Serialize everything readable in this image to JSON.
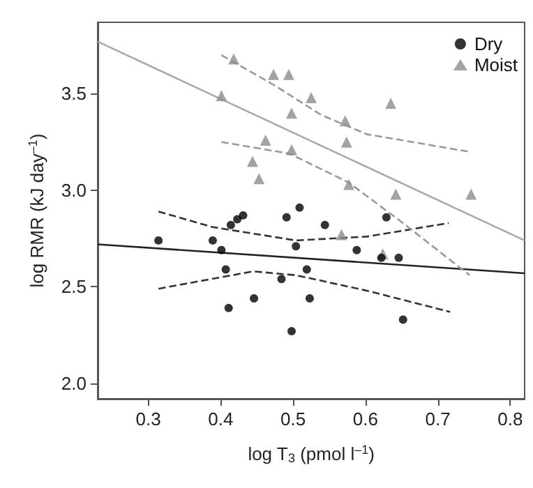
{
  "chart_data": {
    "type": "scatter",
    "xlabel": "log T$_{3}$ (pmol l$^{–1}$)",
    "ylabel": "log RMR (kJ day$^{–1}$)",
    "xlim": [
      0.23,
      0.82
    ],
    "ylim": [
      1.92,
      3.87
    ],
    "xticks": [
      0.3,
      0.4,
      0.5,
      0.6,
      0.7,
      0.8
    ],
    "yticks": [
      {
        "value": 2,
        "label": "2.0"
      },
      2.5,
      {
        "value": 3,
        "label": "3.0"
      },
      3.5
    ],
    "grid": false,
    "legend": "top right",
    "series": [
      {
        "name": "Dry",
        "marker": "circle",
        "color": "#000000",
        "x": [
          0.314,
          0.389,
          0.401,
          0.407,
          0.411,
          0.414,
          0.423,
          0.431,
          0.446,
          0.484,
          0.491,
          0.498,
          0.504,
          0.509,
          0.519,
          0.523,
          0.544,
          0.588,
          0.622,
          0.629,
          0.646,
          0.652
        ],
        "values": [
          2.74,
          2.74,
          2.69,
          2.59,
          2.39,
          2.82,
          2.85,
          2.87,
          2.44,
          2.54,
          2.86,
          2.27,
          2.71,
          2.91,
          2.59,
          2.44,
          2.82,
          2.69,
          2.65,
          2.86,
          2.65,
          2.33
        ]
      },
      {
        "name": "Moist",
        "marker": "triangle",
        "color": "#8c8c8c",
        "x": [
          0.418,
          0.401,
          0.473,
          0.494,
          0.525,
          0.498,
          0.635,
          0.572,
          0.462,
          0.574,
          0.498,
          0.444,
          0.453,
          0.577,
          0.642,
          0.746,
          0.567,
          0.624
        ],
        "values": [
          3.68,
          3.49,
          3.6,
          3.6,
          3.48,
          3.4,
          3.45,
          3.36,
          3.26,
          3.25,
          3.21,
          3.15,
          3.06,
          3.03,
          2.98,
          2.98,
          2.77,
          2.67
        ]
      },
      {
        "type": "line",
        "marker": "none",
        "line_style": "solid",
        "color": "#222222",
        "x": [
          0.23,
          0.82
        ],
        "values": [
          2.72,
          2.57
        ]
      },
      {
        "type": "line",
        "marker": "none",
        "line_style": "solid",
        "color": "#a8a8a8",
        "x": [
          0.23,
          0.82
        ],
        "values": [
          3.77,
          2.74
        ]
      },
      {
        "type": "line",
        "marker": "none",
        "line_style": "dashed",
        "color": "#333333",
        "x": [
          0.314,
          0.388,
          0.504,
          0.602,
          0.715
        ],
        "values": [
          2.89,
          2.81,
          2.74,
          2.76,
          2.83
        ]
      },
      {
        "type": "line",
        "marker": "none",
        "line_style": "dashed",
        "color": "#333333",
        "x": [
          0.314,
          0.445,
          0.504,
          0.602,
          0.717
        ],
        "values": [
          2.49,
          2.58,
          2.56,
          2.48,
          2.37
        ]
      },
      {
        "type": "line",
        "marker": "none",
        "line_style": "dashed",
        "color": "#999999",
        "x": [
          0.401,
          0.476,
          0.539,
          0.602,
          0.743
        ],
        "values": [
          3.7,
          3.54,
          3.39,
          3.29,
          3.2
        ]
      },
      {
        "type": "line",
        "marker": "none",
        "line_style": "dashed",
        "color": "#999999",
        "x": [
          0.401,
          0.495,
          0.577,
          0.652,
          0.744
        ],
        "values": [
          3.25,
          3.19,
          3.04,
          2.83,
          2.56
        ]
      }
    ]
  }
}
